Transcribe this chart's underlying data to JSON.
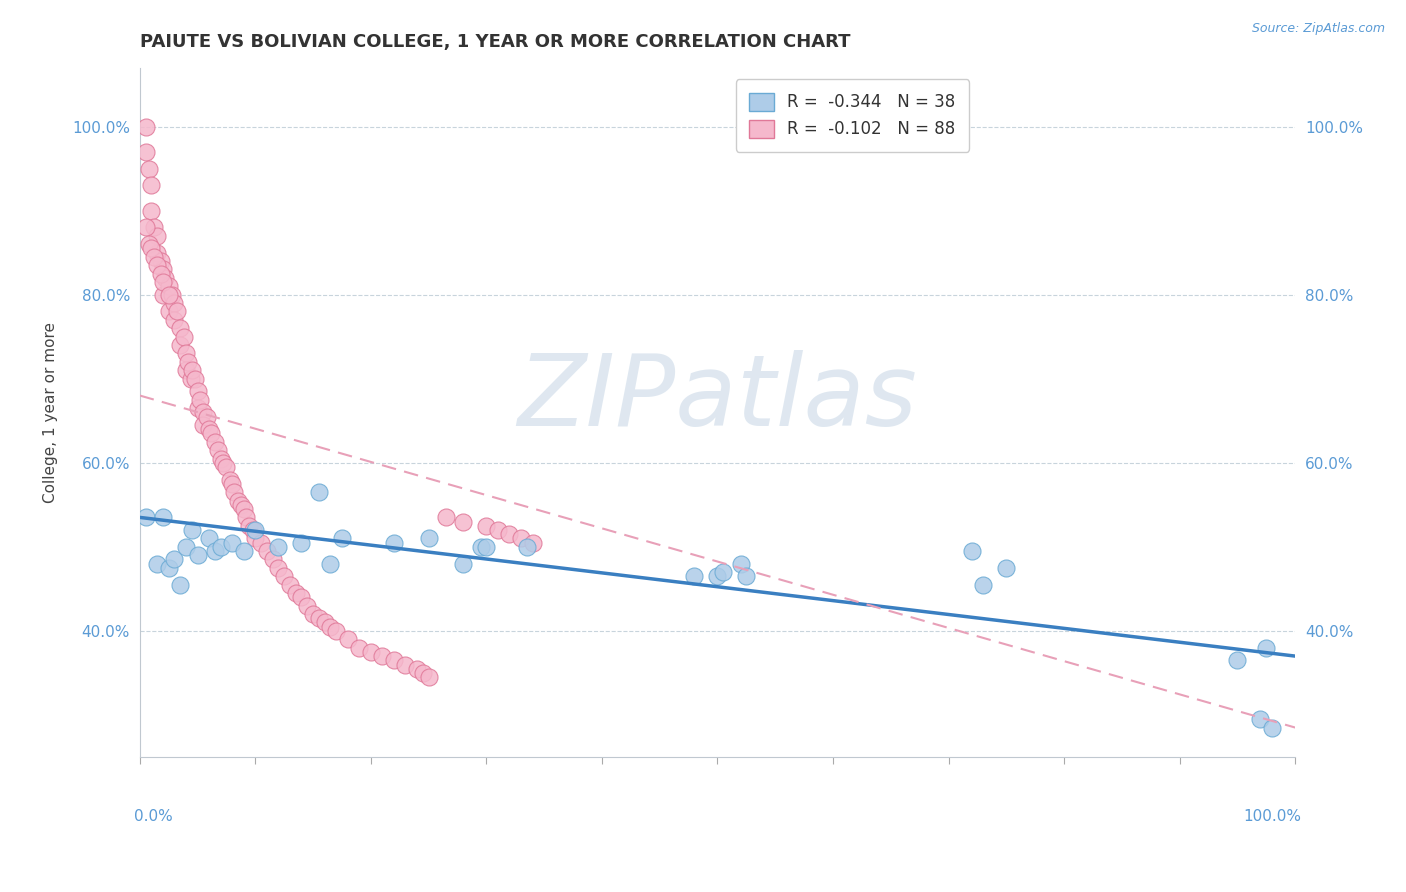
{
  "title": "PAIUTE VS BOLIVIAN COLLEGE, 1 YEAR OR MORE CORRELATION CHART",
  "source": "Source: ZipAtlas.com",
  "ylabel": "College, 1 year or more",
  "paiute_R": "-0.344",
  "paiute_N": "38",
  "bolivian_R": "-0.102",
  "bolivian_N": "88",
  "paiute_color": "#aecce8",
  "bolivian_color": "#f5b8cc",
  "paiute_edge_color": "#6aaad4",
  "bolivian_edge_color": "#e07898",
  "paiute_line_color": "#3a7fc1",
  "bolivian_line_color": "#e8a0b8",
  "ytick_vals": [
    0.4,
    0.6,
    0.8,
    1.0
  ],
  "ytick_labels": [
    "40.0%",
    "60.0%",
    "80.0%",
    "100.0%"
  ],
  "xlim": [
    0,
    1.0
  ],
  "ylim": [
    0.25,
    1.07
  ],
  "paiute_scatter_x": [
    0.005,
    0.015,
    0.02,
    0.025,
    0.03,
    0.035,
    0.04,
    0.045,
    0.05,
    0.06,
    0.065,
    0.07,
    0.08,
    0.09,
    0.1,
    0.12,
    0.14,
    0.155,
    0.165,
    0.175,
    0.22,
    0.25,
    0.28,
    0.295,
    0.335,
    0.48,
    0.5,
    0.505,
    0.52,
    0.525,
    0.72,
    0.73,
    0.75,
    0.95,
    0.97,
    0.975,
    0.98,
    0.3
  ],
  "paiute_scatter_y": [
    0.535,
    0.48,
    0.535,
    0.475,
    0.485,
    0.455,
    0.5,
    0.52,
    0.49,
    0.51,
    0.495,
    0.5,
    0.505,
    0.495,
    0.52,
    0.5,
    0.505,
    0.565,
    0.48,
    0.51,
    0.505,
    0.51,
    0.48,
    0.5,
    0.5,
    0.465,
    0.465,
    0.47,
    0.48,
    0.465,
    0.495,
    0.455,
    0.475,
    0.365,
    0.295,
    0.38,
    0.285,
    0.5
  ],
  "bolivian_scatter_x": [
    0.005,
    0.005,
    0.008,
    0.01,
    0.01,
    0.012,
    0.015,
    0.015,
    0.018,
    0.02,
    0.02,
    0.022,
    0.025,
    0.025,
    0.028,
    0.03,
    0.03,
    0.032,
    0.035,
    0.035,
    0.038,
    0.04,
    0.04,
    0.042,
    0.044,
    0.045,
    0.048,
    0.05,
    0.05,
    0.052,
    0.055,
    0.055,
    0.058,
    0.06,
    0.062,
    0.065,
    0.068,
    0.07,
    0.072,
    0.075,
    0.078,
    0.08,
    0.082,
    0.085,
    0.088,
    0.09,
    0.092,
    0.095,
    0.098,
    0.1,
    0.105,
    0.11,
    0.115,
    0.12,
    0.125,
    0.13,
    0.135,
    0.14,
    0.145,
    0.15,
    0.155,
    0.16,
    0.165,
    0.17,
    0.18,
    0.19,
    0.2,
    0.21,
    0.22,
    0.23,
    0.24,
    0.245,
    0.25,
    0.265,
    0.28,
    0.3,
    0.31,
    0.32,
    0.33,
    0.34,
    0.005,
    0.008,
    0.01,
    0.012,
    0.015,
    0.018,
    0.02,
    0.025
  ],
  "bolivian_scatter_y": [
    1.0,
    0.97,
    0.95,
    0.93,
    0.9,
    0.88,
    0.87,
    0.85,
    0.84,
    0.83,
    0.8,
    0.82,
    0.81,
    0.78,
    0.8,
    0.79,
    0.77,
    0.78,
    0.76,
    0.74,
    0.75,
    0.73,
    0.71,
    0.72,
    0.7,
    0.71,
    0.7,
    0.685,
    0.665,
    0.675,
    0.66,
    0.645,
    0.655,
    0.64,
    0.635,
    0.625,
    0.615,
    0.605,
    0.6,
    0.595,
    0.58,
    0.575,
    0.565,
    0.555,
    0.55,
    0.545,
    0.535,
    0.525,
    0.52,
    0.51,
    0.505,
    0.495,
    0.485,
    0.475,
    0.465,
    0.455,
    0.445,
    0.44,
    0.43,
    0.42,
    0.415,
    0.41,
    0.405,
    0.4,
    0.39,
    0.38,
    0.375,
    0.37,
    0.365,
    0.36,
    0.355,
    0.35,
    0.345,
    0.535,
    0.53,
    0.525,
    0.52,
    0.515,
    0.51,
    0.505,
    0.88,
    0.86,
    0.855,
    0.845,
    0.835,
    0.825,
    0.815,
    0.8
  ]
}
